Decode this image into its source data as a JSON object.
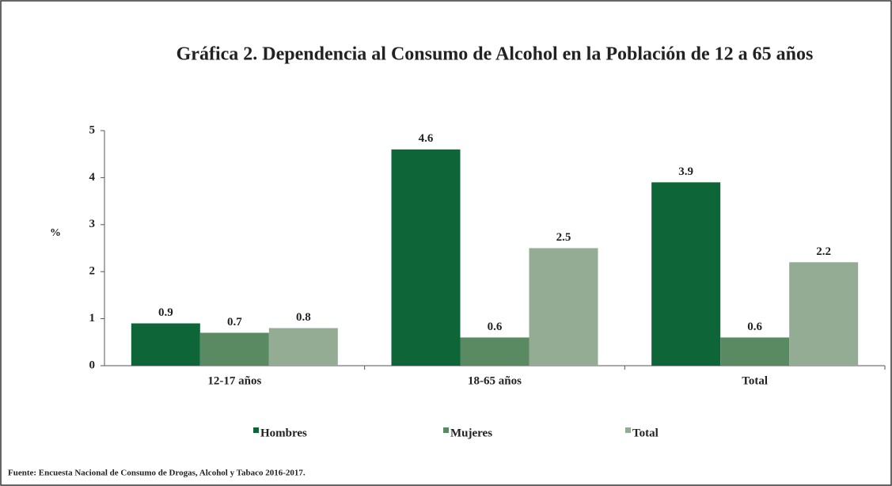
{
  "chart_data": {
    "type": "bar",
    "title": "Gráfica 2. Dependencia al Consumo de Alcohol en la Población de 12 a 65 años",
    "y_label": "%",
    "categories": [
      "12-17 años",
      "18-65 años",
      "Total"
    ],
    "series": [
      {
        "name": "Hombres",
        "color": "#0e6638",
        "values": [
          0.9,
          4.6,
          3.9
        ]
      },
      {
        "name": "Mujeres",
        "color": "#5a8a62",
        "values": [
          0.7,
          0.6,
          0.6
        ]
      },
      {
        "name": "Total",
        "color": "#94ab94",
        "values": [
          0.8,
          2.5,
          2.2
        ]
      }
    ],
    "ylim": [
      0,
      5
    ],
    "yticks": [
      0,
      1,
      2,
      3,
      4,
      5
    ],
    "grid": false,
    "legend": "bottom",
    "source": "Fuente: Encuesta Nacional de Consumo de Drogas, Alcohol y Tabaco 2016-2017."
  }
}
